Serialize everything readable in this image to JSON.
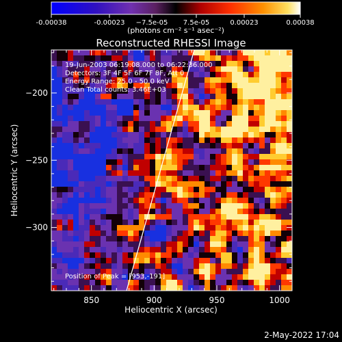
{
  "colorbar": {
    "tick_values": [
      "-0.00038",
      "-0.00023",
      "−7.5e-05",
      "7.5e-05",
      "0.00023",
      "0.00038"
    ],
    "unit_label": "(photons cm⁻² s⁻¹ asec⁻²)",
    "range": [
      -0.00038,
      0.00038
    ]
  },
  "chart_data": {
    "type": "heatmap",
    "title": "Reconstructed RHESSI Image",
    "xlabel": "Heliocentric X (arcsec)",
    "ylabel": "Heliocentric Y (arcsec)",
    "xlim": [
      818,
      1010
    ],
    "ylim": [
      -347,
      -168
    ],
    "xticks": [
      850,
      900,
      950,
      1000
    ],
    "yticks": [
      -200,
      -250,
      -300
    ],
    "colormap": [
      "#0000ff",
      "#3a0070",
      "#6a2ab0",
      "#8040c8",
      "#000000",
      "#ff0000",
      "#ff8000",
      "#ffff00",
      "#ffffff"
    ],
    "annotations": [
      "19-Jun-2003 06:19:08.000 to 06:22:36.000",
      "Detectors: 3F 4F 5F 6F 7F 8F, Att 0",
      "Energy Range: 25.0 - 50.0 keV",
      "Clean     Total counts: 3.46E+03"
    ],
    "peak_label": "Position of Peak = [953,-191]",
    "peak": [
      953,
      -191
    ],
    "limb_line": [
      [
        878,
        -347
      ],
      [
        932,
        -168
      ]
    ]
  },
  "footer": {
    "date": "2-May-2022 17:04"
  }
}
